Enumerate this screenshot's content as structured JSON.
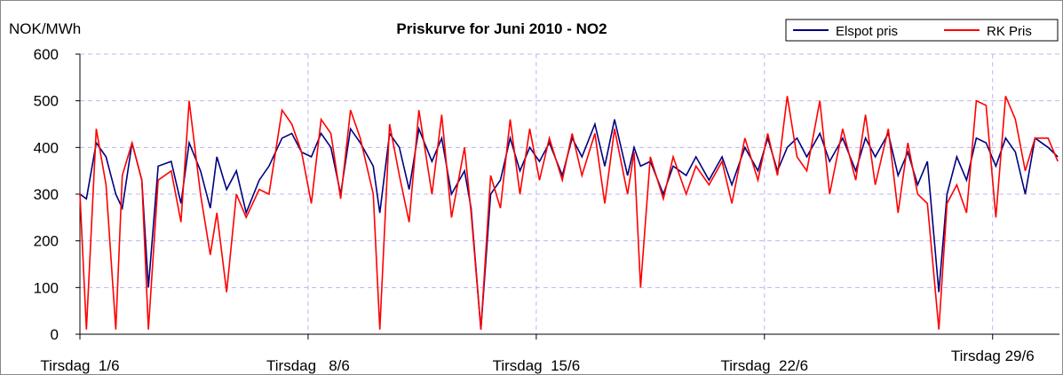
{
  "chart_data": {
    "type": "line",
    "title": "Priskurve for Juni 2010 - NO2",
    "y_label": "NOK/MWh",
    "x": [
      0,
      0.2,
      0.5,
      0.8,
      1.1,
      1.3,
      1.6,
      1.9,
      2.1,
      2.4,
      2.8,
      3.1,
      3.35,
      3.7,
      4.0,
      4.2,
      4.5,
      4.8,
      5.1,
      5.5,
      5.8,
      6.2,
      6.5,
      6.8,
      7.1,
      7.4,
      7.7,
      8.0,
      8.3,
      8.6,
      9.0,
      9.2,
      9.5,
      9.8,
      10.1,
      10.4,
      10.8,
      11.1,
      11.4,
      11.8,
      12.0,
      12.3,
      12.6,
      12.9,
      13.2,
      13.5,
      13.8,
      14.1,
      14.4,
      14.8,
      15.1,
      15.4,
      15.8,
      16.1,
      16.4,
      16.8,
      17.0,
      17.2,
      17.5,
      17.9,
      18.2,
      18.6,
      18.9,
      19.3,
      19.7,
      20.0,
      20.4,
      20.8,
      21.1,
      21.4,
      21.7,
      22.0,
      22.3,
      22.7,
      23.0,
      23.4,
      23.8,
      24.1,
      24.4,
      24.8,
      25.1,
      25.4,
      25.7,
      26.0,
      26.35,
      26.6,
      26.9,
      27.2,
      27.5,
      27.8,
      28.1,
      28.4,
      28.7,
      29.0,
      29.3,
      29.7,
      30.0
    ],
    "series": [
      {
        "name": "Elspot pris",
        "color": "#000080",
        "values": [
          300,
          290,
          410,
          380,
          300,
          270,
          410,
          330,
          100,
          360,
          370,
          280,
          410,
          350,
          270,
          380,
          310,
          350,
          260,
          330,
          360,
          420,
          430,
          390,
          380,
          430,
          400,
          300,
          440,
          410,
          360,
          260,
          430,
          400,
          310,
          440,
          370,
          420,
          300,
          350,
          270,
          10,
          300,
          330,
          420,
          350,
          400,
          370,
          410,
          340,
          420,
          380,
          450,
          360,
          460,
          340,
          400,
          360,
          370,
          300,
          360,
          340,
          380,
          330,
          380,
          320,
          400,
          350,
          420,
          350,
          400,
          420,
          380,
          430,
          370,
          420,
          350,
          420,
          380,
          430,
          340,
          390,
          320,
          370,
          90,
          300,
          380,
          330,
          420,
          410,
          360,
          420,
          390,
          300,
          420,
          400,
          380
        ]
      },
      {
        "name": "RK Pris",
        "color": "#ff0000",
        "values": [
          300,
          10,
          440,
          320,
          10,
          340,
          410,
          330,
          10,
          330,
          350,
          240,
          500,
          300,
          170,
          260,
          90,
          300,
          250,
          310,
          300,
          480,
          450,
          390,
          280,
          460,
          430,
          290,
          480,
          420,
          300,
          10,
          450,
          340,
          240,
          480,
          300,
          470,
          250,
          400,
          260,
          10,
          340,
          270,
          460,
          300,
          440,
          330,
          420,
          330,
          430,
          340,
          430,
          280,
          440,
          300,
          390,
          100,
          380,
          290,
          380,
          300,
          360,
          320,
          370,
          280,
          420,
          330,
          430,
          340,
          510,
          380,
          350,
          500,
          300,
          440,
          330,
          470,
          320,
          440,
          260,
          410,
          300,
          280,
          10,
          280,
          320,
          260,
          500,
          490,
          250,
          510,
          460,
          350,
          420,
          420,
          370
        ]
      }
    ],
    "xlim": [
      0,
      30.05
    ],
    "xticks": [
      {
        "value": 0,
        "label": "Tirsdag  1/6"
      },
      {
        "value": 7,
        "label": "Tirsdag   8/6"
      },
      {
        "value": 14,
        "label": "Tirsdag  15/6"
      },
      {
        "value": 21,
        "label": "Tirsdag  22/6"
      },
      {
        "value": 28,
        "label": "Tirsdag 29/6"
      }
    ],
    "ylim": [
      0,
      600
    ],
    "yticks": [
      0,
      100,
      200,
      300,
      400,
      500,
      600
    ],
    "grid": true,
    "legend_position": "top-right"
  }
}
